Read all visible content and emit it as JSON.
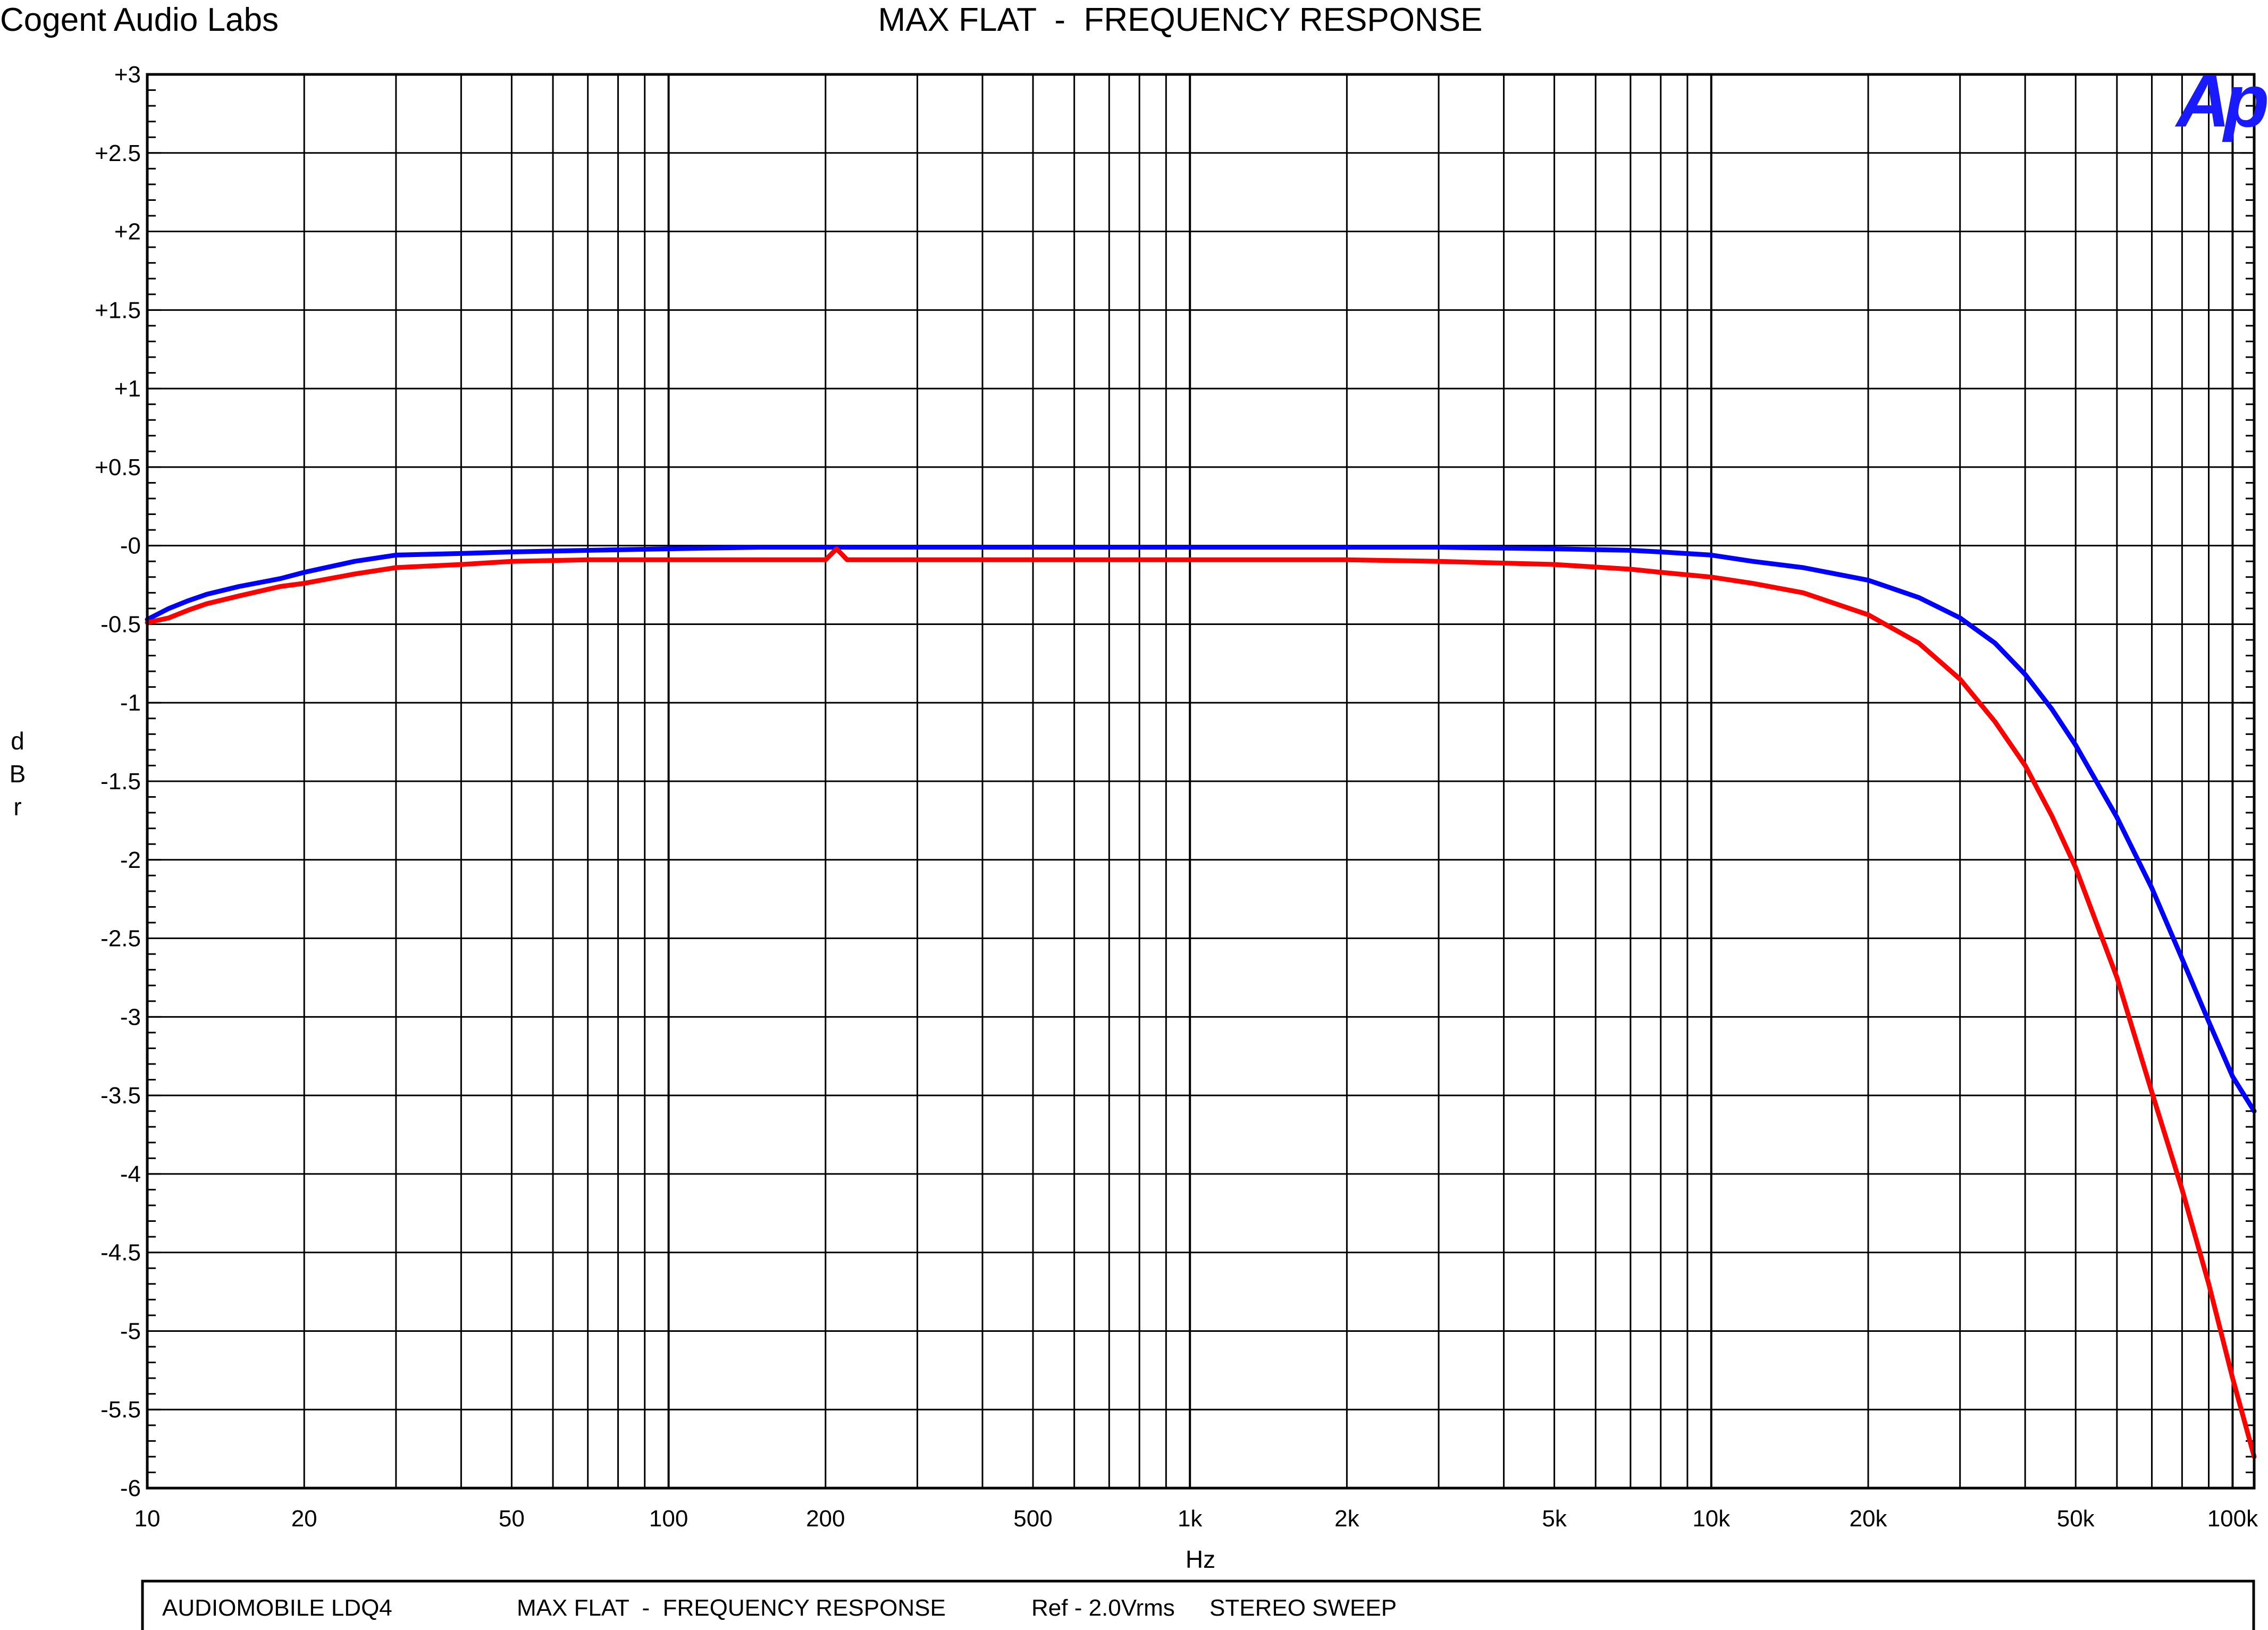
{
  "header": {
    "brand": "Cogent Audio Labs",
    "title": "MAX FLAT  -  FREQUENCY RESPONSE"
  },
  "logo_text": "Ap",
  "footer": {
    "items": [
      "AUDIOMOBILE LDQ4",
      "MAX FLAT  -  FREQUENCY RESPONSE",
      "Ref - 2.0Vrms",
      "STEREO SWEEP"
    ]
  },
  "chart_data": {
    "type": "line",
    "title": "MAX FLAT  -  FREQUENCY RESPONSE",
    "xlabel": "Hz",
    "ylabel": "dBr",
    "xscale": "log",
    "xlim": [
      10,
      110000
    ],
    "ylim": [
      -6,
      3
    ],
    "grid": true,
    "x_ticks": [
      10,
      20,
      50,
      100,
      200,
      500,
      1000,
      2000,
      5000,
      10000,
      20000,
      50000,
      100000
    ],
    "x_tick_labels": [
      "10",
      "20",
      "50",
      "100",
      "200",
      "500",
      "1k",
      "2k",
      "5k",
      "10k",
      "20k",
      "50k",
      "100k"
    ],
    "y_ticks": [
      3,
      2.5,
      2,
      1.5,
      1,
      0.5,
      0,
      -0.5,
      -1,
      -1.5,
      -2,
      -2.5,
      -3,
      -3.5,
      -4,
      -4.5,
      -5,
      -5.5,
      -6
    ],
    "y_tick_labels": [
      "+3",
      "+2.5",
      "+2",
      "+1.5",
      "+1",
      "+0.5",
      "-0",
      "-0.5",
      "-1",
      "-1.5",
      "-2",
      "-2.5",
      "-3",
      "-3.5",
      "-4",
      "-4.5",
      "-5",
      "-5.5",
      "-6"
    ],
    "series": [
      {
        "color": "#0000ff",
        "x": [
          10,
          11,
          12,
          13,
          15,
          18,
          20,
          25,
          30,
          40,
          50,
          70,
          100,
          150,
          200,
          300,
          500,
          700,
          1000,
          2000,
          3000,
          5000,
          7000,
          8000,
          10000,
          12000,
          15000,
          20000,
          25000,
          30000,
          35000,
          40000,
          45000,
          50000,
          60000,
          70000,
          80000,
          90000,
          100000,
          110000
        ],
        "y": [
          -0.47,
          -0.4,
          -0.35,
          -0.31,
          -0.26,
          -0.21,
          -0.17,
          -0.1,
          -0.06,
          -0.05,
          -0.04,
          -0.03,
          -0.02,
          -0.01,
          -0.01,
          -0.01,
          -0.01,
          -0.01,
          -0.01,
          -0.01,
          -0.01,
          -0.02,
          -0.03,
          -0.04,
          -0.06,
          -0.1,
          -0.14,
          -0.22,
          -0.33,
          -0.46,
          -0.62,
          -0.82,
          -1.04,
          -1.27,
          -1.73,
          -2.18,
          -2.63,
          -3.03,
          -3.38,
          -3.6
        ]
      },
      {
        "color": "#ff0000",
        "x": [
          10,
          11,
          12,
          13,
          15,
          18,
          20,
          25,
          30,
          40,
          50,
          70,
          100,
          150,
          200,
          210,
          220,
          300,
          500,
          700,
          1000,
          2000,
          3000,
          5000,
          7000,
          8000,
          10000,
          12000,
          15000,
          20000,
          25000,
          30000,
          35000,
          40000,
          45000,
          50000,
          60000,
          70000,
          80000,
          90000,
          100000,
          110000
        ],
        "y": [
          -0.49,
          -0.46,
          -0.41,
          -0.37,
          -0.32,
          -0.26,
          -0.24,
          -0.18,
          -0.14,
          -0.12,
          -0.1,
          -0.09,
          -0.09,
          -0.09,
          -0.09,
          -0.02,
          -0.09,
          -0.09,
          -0.09,
          -0.09,
          -0.09,
          -0.09,
          -0.1,
          -0.12,
          -0.15,
          -0.17,
          -0.2,
          -0.24,
          -0.3,
          -0.44,
          -0.62,
          -0.85,
          -1.12,
          -1.4,
          -1.72,
          -2.05,
          -2.75,
          -3.48,
          -4.1,
          -4.7,
          -5.3,
          -5.8
        ]
      }
    ]
  }
}
